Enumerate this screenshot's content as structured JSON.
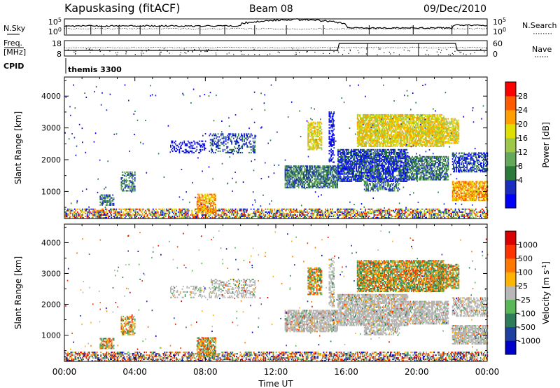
{
  "header": {
    "title": "Kapuskasing (fitACF)",
    "beam": "Beam 08",
    "date": "09/Dec/2010"
  },
  "summary": {
    "noise_label": "N.Sky",
    "noise_left_ticks": [
      "10^5",
      "10^0"
    ],
    "noise_right_label": "N.Search",
    "noise_right_ticks": [
      "10^5",
      "10^0"
    ],
    "freq_label_1": "Freq.",
    "freq_label_2": "[MHz]",
    "freq_ticks": [
      "18",
      "8"
    ],
    "nave_label": "Nave",
    "nave_ticks": [
      "60",
      "0"
    ],
    "cpid_label": "CPID",
    "cpid_value": "themis 3300"
  },
  "chart_data": [
    {
      "type": "heatmap",
      "name": "power",
      "ylabel": "Slant Range [km]",
      "yticks": [
        1000,
        2000,
        3000,
        4000
      ],
      "ylim": [
        150,
        4600
      ],
      "xlim_hours": [
        0,
        24
      ],
      "colorbar": {
        "label": "Power [dB]",
        "ticks": [
          "28",
          "24",
          "20",
          "16",
          "12",
          "8",
          "4"
        ],
        "colors": [
          "#0000ff",
          "#1a2dbf",
          "#2a7a3c",
          "#64a85a",
          "#9ec84a",
          "#e0e000",
          "#ffa000",
          "#ff5a00",
          "#ff0000"
        ]
      }
    },
    {
      "type": "heatmap",
      "name": "velocity",
      "ylabel": "Slant Range [km]",
      "yticks": [
        1000,
        2000,
        3000,
        4000
      ],
      "ylim": [
        150,
        4600
      ],
      "xlim_hours": [
        0,
        24
      ],
      "xticks": [
        "00:00",
        "04:00",
        "08:00",
        "12:00",
        "16:00",
        "20:00",
        "00:00"
      ],
      "xlabel": "Time UT",
      "colorbar": {
        "label": "Velocity [m s^-1]",
        "ticks": [
          "1000",
          "500",
          "100",
          "25",
          "-25",
          "-100",
          "-500",
          "-1000"
        ],
        "colors": [
          "#0000cc",
          "#1c3fa0",
          "#2e7d5a",
          "#58b858",
          "#b8b8b8",
          "#ffb400",
          "#ff7800",
          "#ff3200",
          "#dd0000"
        ]
      },
      "ground_scatter_color": "#b4b4b4"
    }
  ]
}
